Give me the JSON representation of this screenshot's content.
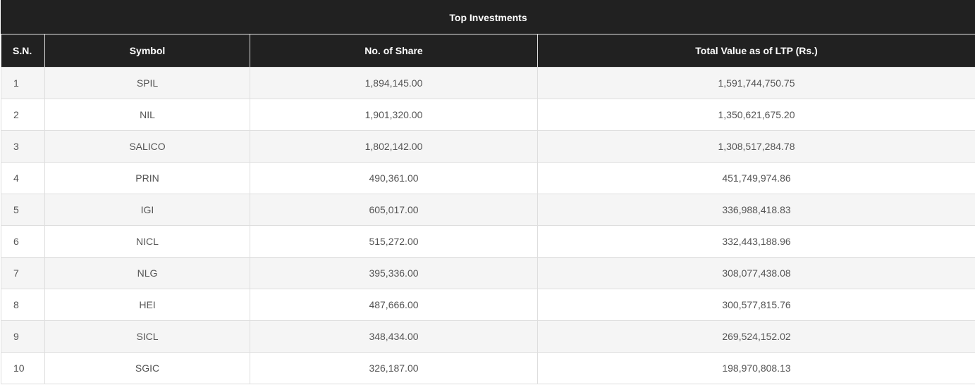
{
  "table": {
    "title": "Top Investments",
    "columns": [
      "S.N.",
      "Symbol",
      "No. of Share",
      "Total Value as of LTP (Rs.)"
    ],
    "rows": [
      [
        "1",
        "SPIL",
        "1,894,145.00",
        "1,591,744,750.75"
      ],
      [
        "2",
        "NIL",
        "1,901,320.00",
        "1,350,621,675.20"
      ],
      [
        "3",
        "SALICO",
        "1,802,142.00",
        "1,308,517,284.78"
      ],
      [
        "4",
        "PRIN",
        "490,361.00",
        "451,749,974.86"
      ],
      [
        "5",
        "IGI",
        "605,017.00",
        "336,988,418.83"
      ],
      [
        "6",
        "NICL",
        "515,272.00",
        "332,443,188.96"
      ],
      [
        "7",
        "NLG",
        "395,336.00",
        "308,077,438.08"
      ],
      [
        "8",
        "HEI",
        "487,666.00",
        "300,577,815.76"
      ],
      [
        "9",
        "SICL",
        "348,434.00",
        "269,524,152.02"
      ],
      [
        "10",
        "SGIC",
        "326,187.00",
        "198,970,808.13"
      ]
    ]
  },
  "colors": {
    "header_bg": "#212121",
    "header_text": "#ffffff",
    "row_alt_bg": "#f5f5f5",
    "cell_text": "#555555"
  }
}
